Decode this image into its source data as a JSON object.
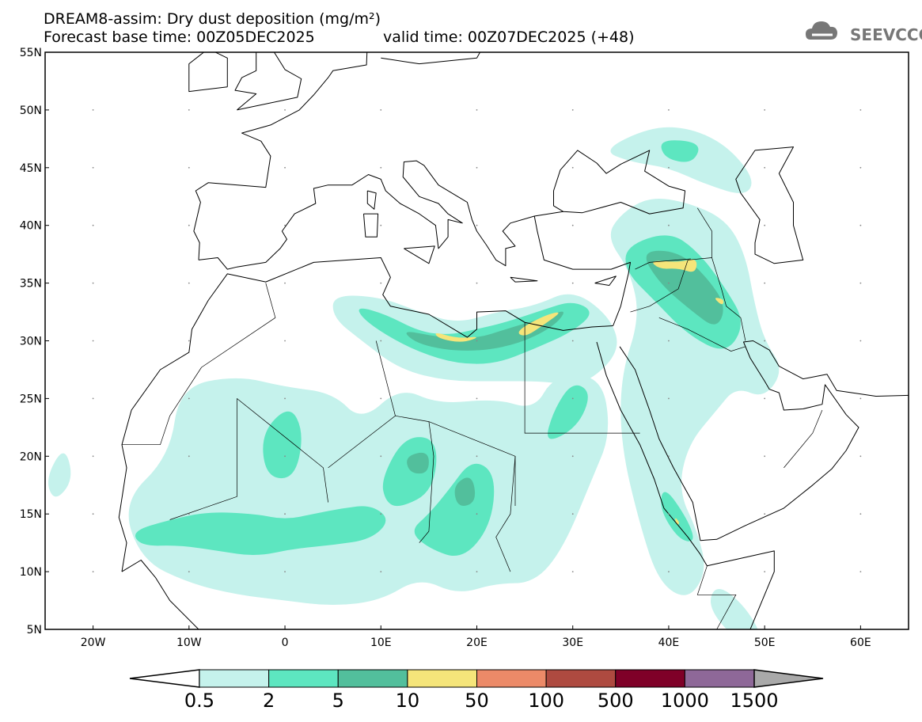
{
  "header": {
    "title": "DREAM8-assim: Dry dust deposition (mg/m²)",
    "base_time": "Forecast base time: 00Z05DEC2025",
    "valid_time": "valid time: 00Z07DEC2025 (+48)",
    "logo_text": "SEEVCCC",
    "logo_icon": "cloud-icon"
  },
  "map": {
    "lon_range": [
      -25,
      65
    ],
    "lat_range": [
      5,
      55
    ],
    "lat_labels": [
      {
        "value": 55,
        "label": "55N"
      },
      {
        "value": 50,
        "label": "50N"
      },
      {
        "value": 45,
        "label": "45N"
      },
      {
        "value": 40,
        "label": "40N"
      },
      {
        "value": 35,
        "label": "35N"
      },
      {
        "value": 30,
        "label": "30N"
      },
      {
        "value": 25,
        "label": "25N"
      },
      {
        "value": 20,
        "label": "20N"
      },
      {
        "value": 15,
        "label": "15N"
      },
      {
        "value": 10,
        "label": "10N"
      },
      {
        "value": 5,
        "label": "5N"
      }
    ],
    "lon_labels": [
      {
        "value": -20,
        "label": "20W"
      },
      {
        "value": -10,
        "label": "10W"
      },
      {
        "value": 0,
        "label": "0"
      },
      {
        "value": 10,
        "label": "10E"
      },
      {
        "value": 20,
        "label": "20E"
      },
      {
        "value": 30,
        "label": "30E"
      },
      {
        "value": 40,
        "label": "40E"
      },
      {
        "value": 50,
        "label": "50E"
      },
      {
        "value": 60,
        "label": "60E"
      }
    ]
  },
  "colorbar": {
    "levels": [
      "0.5",
      "2",
      "5",
      "10",
      "50",
      "100",
      "500",
      "1000",
      "1500"
    ],
    "below_color": "#ffffff",
    "colors": [
      "#c5f2ec",
      "#5de6c0",
      "#52bf9c",
      "#f5e57a",
      "#ec8a68",
      "#ae4a40",
      "#7f0028",
      "#8e6898"
    ],
    "above_color": "#a9a9a9"
  }
}
